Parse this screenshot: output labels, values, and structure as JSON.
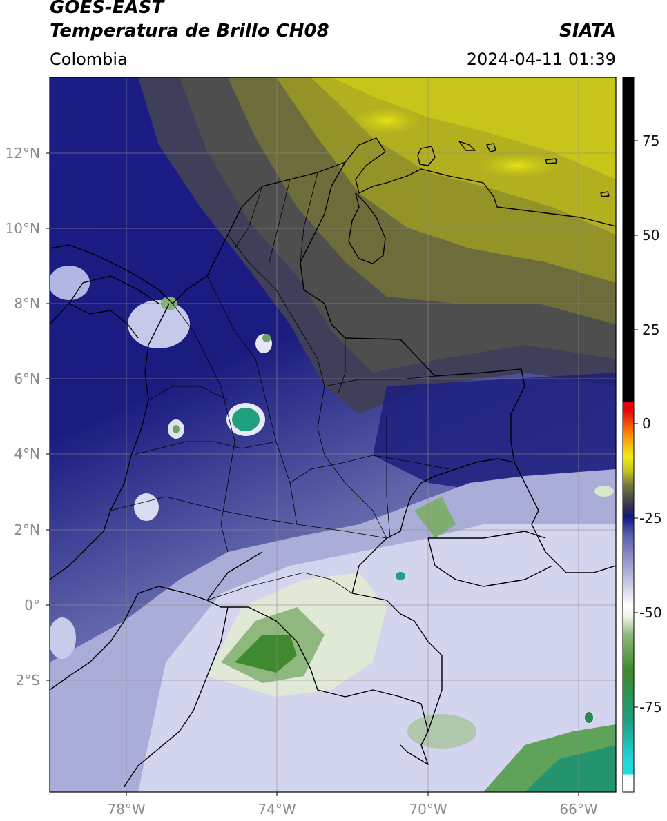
{
  "header": {
    "title_line1": "GOES-EAST",
    "title_line2": "Temperatura de Brillo CH08",
    "region": "Colombia",
    "organization": "SIATA",
    "datetime": "2024-04-11 01:39"
  },
  "map": {
    "lon_ticks": [
      "78°W",
      "74°W",
      "70°W",
      "66°W"
    ],
    "lat_ticks": [
      "12°N",
      "10°N",
      "8°N",
      "6°N",
      "4°N",
      "2°N",
      "0°",
      "2°S"
    ]
  },
  "colorbar": {
    "ticks": [
      "75",
      "50",
      "25",
      "0",
      "-25",
      "-50",
      "-75"
    ],
    "colors": {
      "white": "#ffffff",
      "cyan": "#1fd3d3",
      "teal": "#1b9e82",
      "green": "#3d8a2a",
      "light_green": "#dde8cf",
      "lavender": "#b9bde0",
      "navy": "#14167e",
      "gray": "#4a4a4a",
      "olive": "#9a9a1e",
      "yellow": "#e8e614",
      "orange": "#ff8c00",
      "red": "#e8000b",
      "black": "#000000"
    }
  }
}
